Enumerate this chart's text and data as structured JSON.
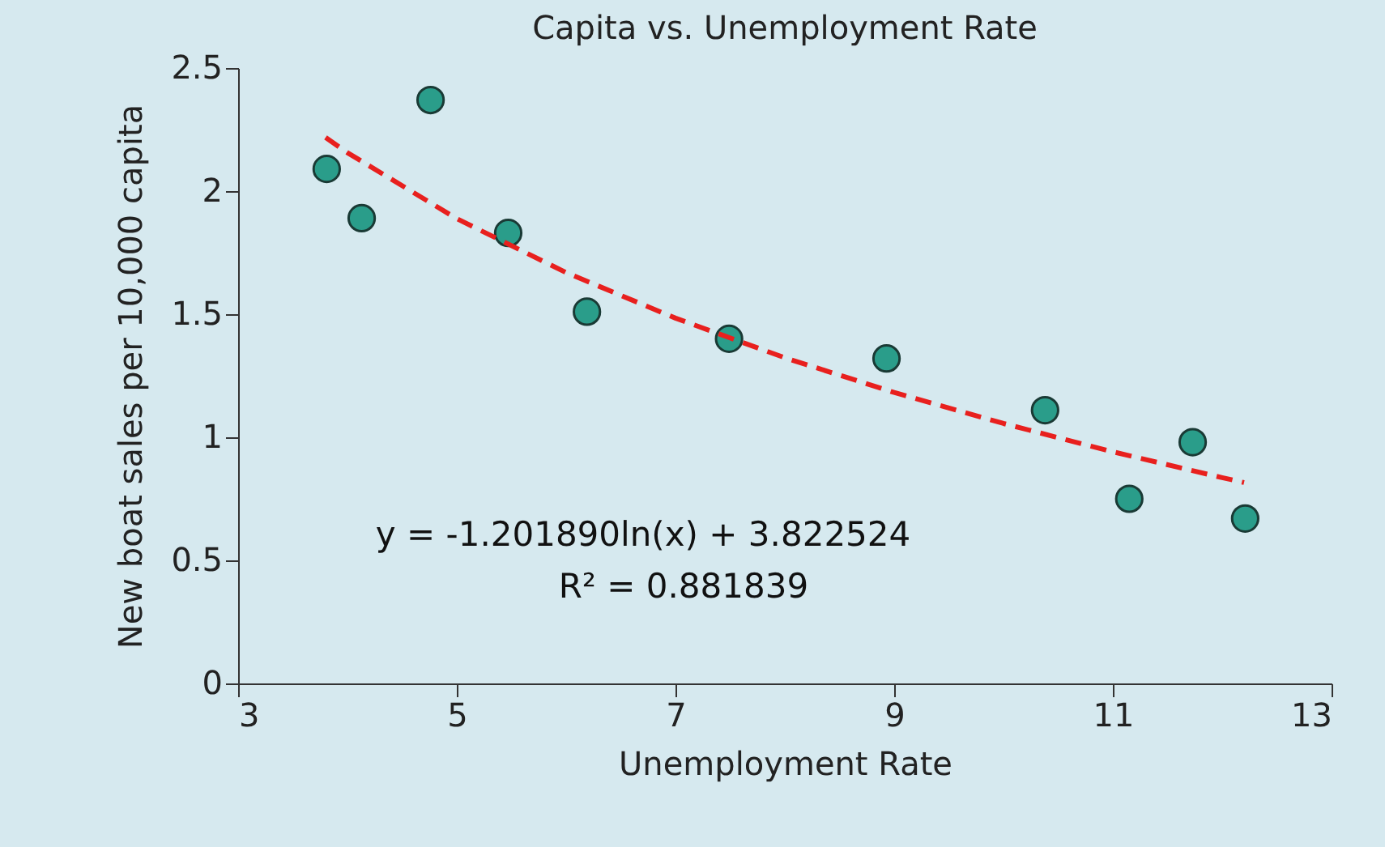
{
  "chart_data": {
    "type": "scatter",
    "title": "Capita vs. Unemployment Rate",
    "xlabel": "Unemployment Rate",
    "ylabel": "New boat sales per 10,000 capita",
    "series": [
      {
        "color": "#2a9d8a",
        "x": [
          3.81,
          4.13,
          4.76,
          5.47,
          6.19,
          7.49,
          8.93,
          10.38,
          11.15,
          11.73,
          12.21
        ],
        "values": [
          2.09,
          1.89,
          2.37,
          1.83,
          1.51,
          1.4,
          1.32,
          1.11,
          0.75,
          0.98,
          0.67
        ]
      },
      {
        "type": "line",
        "color": "#e8201e",
        "line_style": "dashed",
        "marker": "none",
        "x": [
          3.8,
          4,
          5,
          6,
          7,
          8,
          9,
          10,
          11,
          12,
          12.2
        ],
        "values": [
          2.218,
          2.156,
          1.888,
          1.669,
          1.484,
          1.323,
          1.182,
          1.056,
          0.941,
          0.836,
          0.816
        ]
      }
    ],
    "marker": "circle",
    "grid": false,
    "xlim": [
      3,
      13
    ],
    "xticks": [
      3,
      5,
      7,
      9,
      11,
      13
    ],
    "ylim": [
      0,
      2.5
    ],
    "yticks": [
      0,
      0.5,
      1,
      1.5,
      2,
      2.5
    ],
    "annotations": [
      "y = -1.201890ln(x) + 3.822524",
      "R² = 0.881839"
    ]
  }
}
